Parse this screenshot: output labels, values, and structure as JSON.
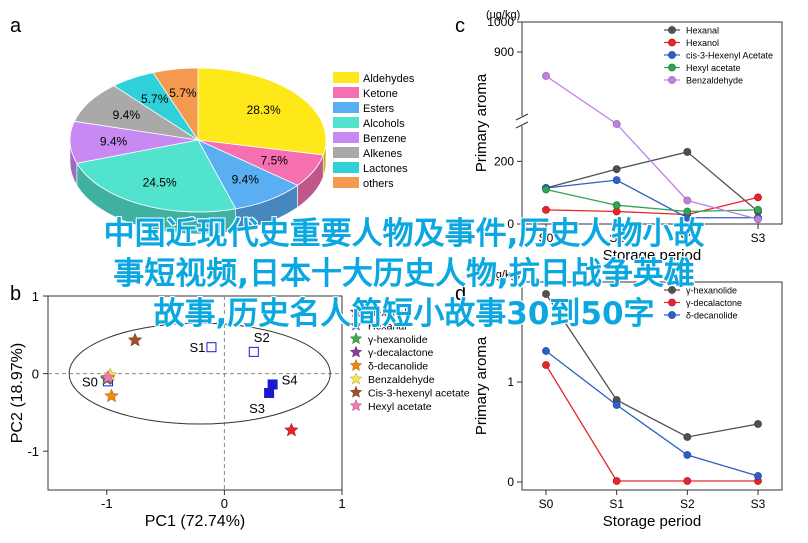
{
  "headline": {
    "line1": "中国近现代史重要人物及事件,历史人物小故",
    "line2": "事短视频,日本十大历史人物,抗日战争英雄",
    "line3": "故事,历史名人简短小故事30到50字"
  },
  "panel_labels": [
    "a",
    "b",
    "c",
    "d"
  ],
  "chart_data": [
    {
      "panel": "a",
      "type": "pie",
      "slices": [
        {
          "name": "Aldehydes",
          "value": 28.3,
          "label": "28.3%",
          "color": "#ffe81a"
        },
        {
          "name": "Ketone",
          "value": 7.5,
          "label": "7.5%",
          "color": "#f56fb1"
        },
        {
          "name": "Esters",
          "value": 9.4,
          "label": "9.4%",
          "color": "#5aaef2"
        },
        {
          "name": "Alcohols",
          "value": 24.5,
          "label": "24.5%",
          "color": "#52e3cf"
        },
        {
          "name": "Benzene",
          "value": 9.4,
          "label": "9.4%",
          "color": "#c88af2"
        },
        {
          "name": "Alkenes",
          "value": 9.4,
          "label": "9.4%",
          "color": "#a9a9a9"
        },
        {
          "name": "Lactones",
          "value": 5.7,
          "label": "5.7%",
          "color": "#2fd0d8"
        },
        {
          "name": "others",
          "value": 5.7,
          "label": "5.7%",
          "color": "#f39a4e"
        }
      ],
      "legend_position": "right"
    },
    {
      "panel": "b",
      "type": "scatter",
      "xlabel": "PC1 (72.74%)",
      "ylabel": "PC2 (18.97%)",
      "xlim": [
        -1.5,
        1.0
      ],
      "ylim": [
        -1.5,
        1.0
      ],
      "xticks": [
        -1,
        0,
        1
      ],
      "yticks": [
        -1,
        0,
        1
      ],
      "samples": [
        {
          "label": "S0",
          "x": -0.99,
          "y": -0.1
        },
        {
          "label": "S1",
          "x": -0.11,
          "y": 0.34
        },
        {
          "label": "S2",
          "x": 0.25,
          "y": 0.28
        },
        {
          "label": "S3",
          "x": 0.38,
          "y": -0.25
        },
        {
          "label": "S4",
          "x": 0.41,
          "y": -0.14
        }
      ],
      "compounds": [
        {
          "name": "Hexanol",
          "x": 0.57,
          "y": -0.73,
          "color": "#e8242a"
        },
        {
          "name": "Hexanal",
          "x": -0.21,
          "y": 0.87,
          "color": "#4f84a8"
        },
        {
          "name": "γ-hexanolide",
          "x": -1.0,
          "y": -0.07,
          "color": "#46a84a"
        },
        {
          "name": "γ-decalactone",
          "x": -0.99,
          "y": -0.06,
          "color": "#8b3c9c"
        },
        {
          "name": "δ-decanolide",
          "x": -0.96,
          "y": -0.29,
          "color": "#f2880f"
        },
        {
          "name": "Benzaldehyde",
          "x": -0.97,
          "y": -0.02,
          "color": "#f7e64b"
        },
        {
          "name": "Cis-3-hexenyl acetate",
          "x": -0.76,
          "y": 0.43,
          "color": "#a0522d"
        },
        {
          "name": "Hexyl acetate",
          "x": -0.99,
          "y": -0.05,
          "color": "#f07ab2"
        }
      ],
      "ellipse": true,
      "legend_position": "right"
    },
    {
      "panel": "c",
      "type": "line",
      "unit": "(ug/kg)",
      "xlabel": "Storage period",
      "ylabel": "Primary aroma",
      "categories": [
        "S0",
        "S1",
        "S2",
        "S3"
      ],
      "yticks": [
        0,
        200,
        900,
        1000
      ],
      "axis_break": [
        300,
        700
      ],
      "series": [
        {
          "name": "Hexanal",
          "values": [
            115,
            175,
            230,
            40
          ],
          "color": "#505050"
        },
        {
          "name": "Hexanol",
          "values": [
            45,
            40,
            30,
            85
          ],
          "color": "#e8242a"
        },
        {
          "name": "cis-3-Hexenyl Acetate",
          "values": [
            115,
            140,
            20,
            20
          ],
          "color": "#2c5fc8"
        },
        {
          "name": "Hexyl acetate",
          "values": [
            110,
            60,
            40,
            45
          ],
          "color": "#33a353"
        },
        {
          "name": "Benzaldehyde",
          "values": [
            820,
            660,
            75,
            15
          ],
          "color": "#c080e0"
        }
      ],
      "legend_position": "top-right"
    },
    {
      "panel": "d",
      "type": "line",
      "unit": "(ug/kg)",
      "xlabel": "Storage period",
      "ylabel": "Primary aroma",
      "categories": [
        "S0",
        "S1",
        "S2",
        "S3"
      ],
      "ylim": [
        0,
        2
      ],
      "yticks": [
        0,
        1
      ],
      "series": [
        {
          "name": "γ-hexanolide",
          "values": [
            1.88,
            0.82,
            0.45,
            0.58
          ],
          "color": "#505050"
        },
        {
          "name": "γ-decalactone",
          "values": [
            1.17,
            0.01,
            0.01,
            0.01
          ],
          "color": "#e8242a"
        },
        {
          "name": "δ-decanolide",
          "values": [
            1.31,
            0.77,
            0.27,
            0.06
          ],
          "color": "#2c5fc8"
        }
      ],
      "legend_position": "top-right"
    }
  ]
}
